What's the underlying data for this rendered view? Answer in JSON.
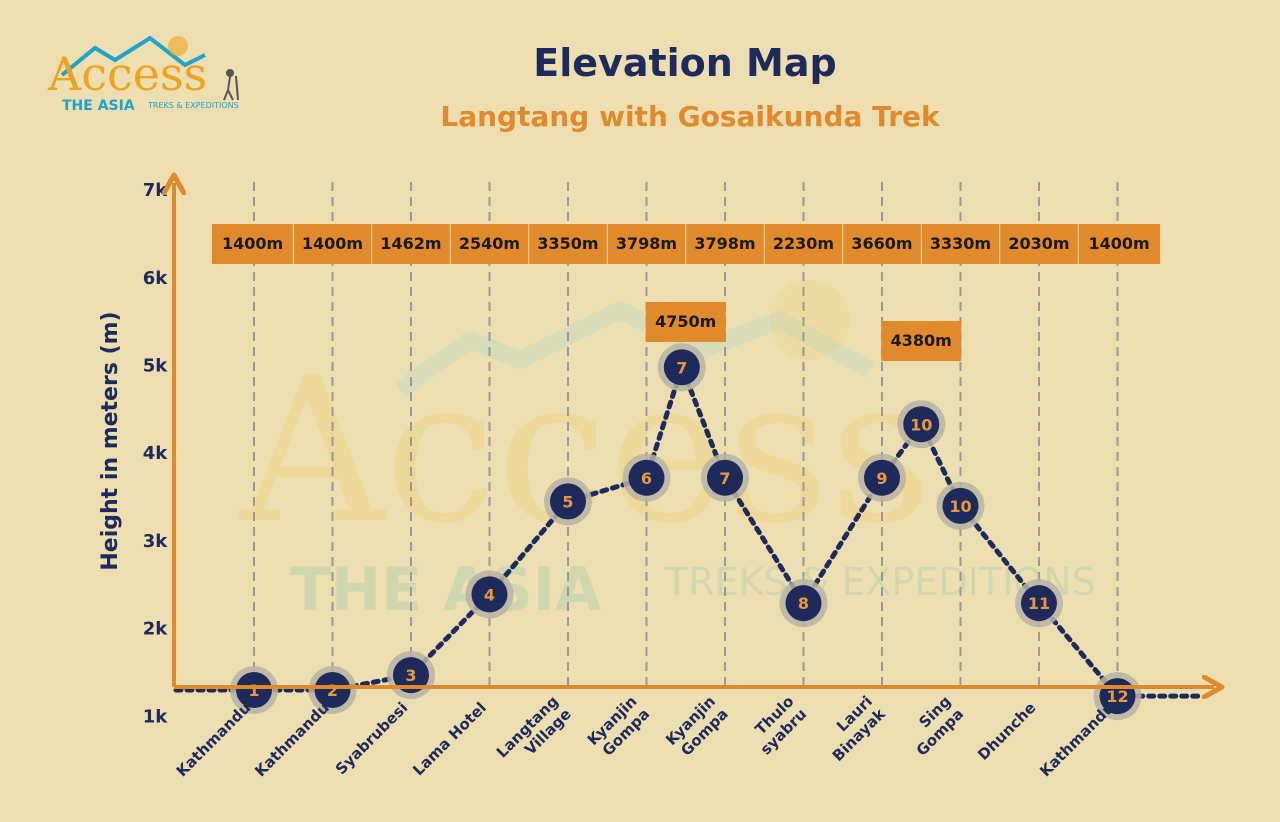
{
  "title": "Elevation Map",
  "subtitle": "Langtang with Gosaikunda Trek",
  "brand": {
    "name": "Access",
    "tagline": "THE ASIA",
    "subtagline": "TREKS & EXPEDITIONS",
    "color_primary": "#f0a323",
    "color_secondary": "#1fa3c8"
  },
  "colors": {
    "background": "#ecdeb0",
    "navy": "#1f2a5c",
    "orange": "#e08a2c",
    "label_box": "#e08a2c",
    "day_text": "#e9983a"
  },
  "chart_data": {
    "type": "line",
    "ylabel": "Height in meters (m)",
    "xlabel": "",
    "ylim": [
      0,
      7000
    ],
    "y_ticks": [
      {
        "value": 1000,
        "label": "1k"
      },
      {
        "value": 2000,
        "label": "2k"
      },
      {
        "value": 3000,
        "label": "3k"
      },
      {
        "value": 4000,
        "label": "4k"
      },
      {
        "value": 5000,
        "label": "5k"
      },
      {
        "value": 6000,
        "label": "6k"
      },
      {
        "value": 7000,
        "label": "7k"
      }
    ],
    "grid": "vertical dashed",
    "columns": [
      {
        "lines": [
          "Kathmandu"
        ],
        "elevation_label": "1400m"
      },
      {
        "lines": [
          "Kathmandu"
        ],
        "elevation_label": "1400m"
      },
      {
        "lines": [
          "Syabrubesi"
        ],
        "elevation_label": "1462m"
      },
      {
        "lines": [
          "Lama Hotel"
        ],
        "elevation_label": "2540m"
      },
      {
        "lines": [
          "Langtang",
          "Village"
        ],
        "elevation_label": "3350m"
      },
      {
        "lines": [
          "Kyanjin",
          "Gompa"
        ],
        "elevation_label": "3798m"
      },
      {
        "lines": [
          "Kyanjin",
          "Gompa"
        ],
        "elevation_label": "3798m"
      },
      {
        "lines": [
          "Thulo",
          "syabru"
        ],
        "elevation_label": "2230m"
      },
      {
        "lines": [
          "Lauri",
          "Binayak"
        ],
        "elevation_label": "3660m"
      },
      {
        "lines": [
          "Sing",
          "Gompa"
        ],
        "elevation_label": "3330m"
      },
      {
        "lines": [
          "Dhunche"
        ],
        "elevation_label": "2030m"
      },
      {
        "lines": [
          "Kathmandu"
        ],
        "elevation_label": "1400m"
      }
    ],
    "points": [
      {
        "day": "1",
        "x": 1,
        "y": 1300
      },
      {
        "day": "2",
        "x": 2,
        "y": 1300
      },
      {
        "day": "3",
        "x": 3,
        "y": 1470
      },
      {
        "day": "4",
        "x": 4,
        "y": 2390
      },
      {
        "day": "5",
        "x": 5,
        "y": 3450
      },
      {
        "day": "6",
        "x": 6,
        "y": 3720
      },
      {
        "day": "7",
        "x": 6.45,
        "y": 4980
      },
      {
        "day": "7",
        "x": 7,
        "y": 3720
      },
      {
        "day": "8",
        "x": 8,
        "y": 2290
      },
      {
        "day": "9",
        "x": 9,
        "y": 3720
      },
      {
        "day": "10",
        "x": 9.5,
        "y": 4330
      },
      {
        "day": "10",
        "x": 10,
        "y": 3400
      },
      {
        "day": "11",
        "x": 11,
        "y": 2290
      },
      {
        "day": "12",
        "x": 12,
        "y": 1230
      }
    ],
    "peaks": [
      {
        "label": "4750m",
        "x": 6.5
      },
      {
        "label": "4380m",
        "x": 9.5
      }
    ]
  }
}
